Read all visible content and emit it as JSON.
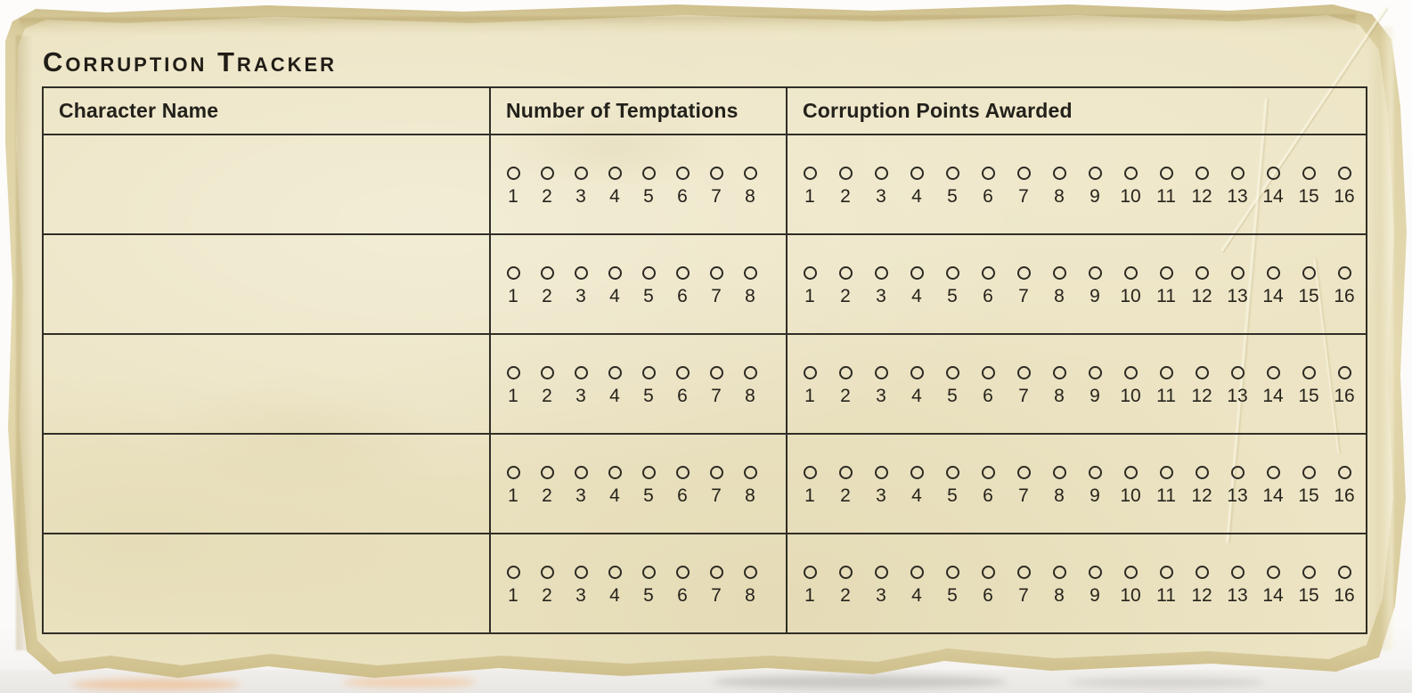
{
  "title": "Corruption Tracker",
  "table": {
    "headers": [
      "Character Name",
      "Number of Temptations",
      "Corruption Points Awarded"
    ],
    "rows": [
      {
        "character_name": "",
        "temptations": [
          "1",
          "2",
          "3",
          "4",
          "5",
          "6",
          "7",
          "8"
        ],
        "corruption_points": [
          "1",
          "2",
          "3",
          "4",
          "5",
          "6",
          "7",
          "8",
          "9",
          "10",
          "11",
          "12",
          "13",
          "14",
          "15",
          "16"
        ]
      },
      {
        "character_name": "",
        "temptations": [
          "1",
          "2",
          "3",
          "4",
          "5",
          "6",
          "7",
          "8"
        ],
        "corruption_points": [
          "1",
          "2",
          "3",
          "4",
          "5",
          "6",
          "7",
          "8",
          "9",
          "10",
          "11",
          "12",
          "13",
          "14",
          "15",
          "16"
        ]
      },
      {
        "character_name": "",
        "temptations": [
          "1",
          "2",
          "3",
          "4",
          "5",
          "6",
          "7",
          "8"
        ],
        "corruption_points": [
          "1",
          "2",
          "3",
          "4",
          "5",
          "6",
          "7",
          "8",
          "9",
          "10",
          "11",
          "12",
          "13",
          "14",
          "15",
          "16"
        ]
      },
      {
        "character_name": "",
        "temptations": [
          "1",
          "2",
          "3",
          "4",
          "5",
          "6",
          "7",
          "8"
        ],
        "corruption_points": [
          "1",
          "2",
          "3",
          "4",
          "5",
          "6",
          "7",
          "8",
          "9",
          "10",
          "11",
          "12",
          "13",
          "14",
          "15",
          "16"
        ]
      },
      {
        "character_name": "",
        "temptations": [
          "1",
          "2",
          "3",
          "4",
          "5",
          "6",
          "7",
          "8"
        ],
        "corruption_points": [
          "1",
          "2",
          "3",
          "4",
          "5",
          "6",
          "7",
          "8",
          "9",
          "10",
          "11",
          "12",
          "13",
          "14",
          "15",
          "16"
        ]
      }
    ]
  },
  "colors": {
    "parchment": "#ece4c4",
    "parchment_rim": "#ddd1a4",
    "table_line": "#302e27",
    "ink": "#23211b",
    "outside_background": "#fdfcfb"
  }
}
